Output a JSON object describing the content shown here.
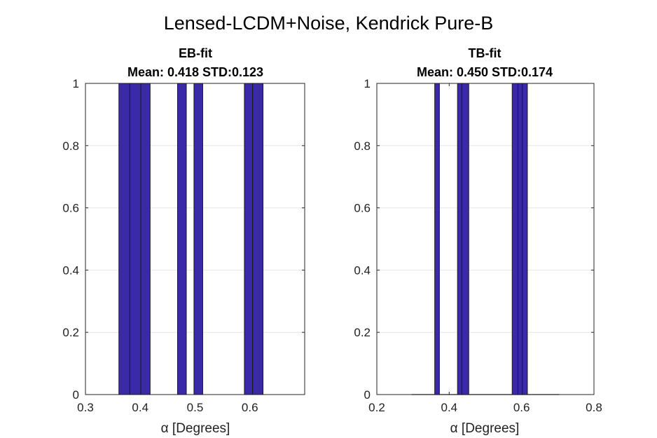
{
  "suptitle": "Lensed-LCDM+Noise, Kendrick Pure-B",
  "chart_data": [
    {
      "type": "bar",
      "title_line1": "EB-fit",
      "title_line2": "Mean: 0.418 STD:0.123",
      "xlabel": "α [Degrees]",
      "ylabel": "",
      "xlim": [
        0.3,
        0.7
      ],
      "ylim": [
        0,
        1
      ],
      "grid": "y",
      "xticks": [
        "0.3",
        "0.4",
        "0.5",
        "0.6"
      ],
      "yticks": [
        "0",
        "0.2",
        "0.4",
        "0.6",
        "0.8",
        "1"
      ],
      "bars": [
        {
          "x_start": 0.361,
          "x_end": 0.381,
          "value": 1
        },
        {
          "x_start": 0.381,
          "x_end": 0.401,
          "value": 1
        },
        {
          "x_start": 0.401,
          "x_end": 0.418,
          "value": 1
        },
        {
          "x_start": 0.468,
          "x_end": 0.484,
          "value": 1
        },
        {
          "x_start": 0.498,
          "x_end": 0.514,
          "value": 1
        },
        {
          "x_start": 0.59,
          "x_end": 0.605,
          "value": 1
        },
        {
          "x_start": 0.605,
          "x_end": 0.624,
          "value": 1
        }
      ],
      "baseline": []
    },
    {
      "type": "bar",
      "title_line1": "TB-fit",
      "title_line2": "Mean: 0.450 STD:0.174",
      "xlabel": "α [Degrees]",
      "ylabel": "",
      "xlim": [
        0.2,
        0.8
      ],
      "ylim": [
        0,
        1
      ],
      "grid": "y",
      "xticks": [
        "0.2",
        "0.4",
        "0.6",
        "0.8"
      ],
      "yticks": [
        "0",
        "0.2",
        "0.4",
        "0.6",
        "0.8",
        "1"
      ],
      "bars": [
        {
          "x_start": 0.36,
          "x_end": 0.373,
          "value": 1
        },
        {
          "x_start": 0.423,
          "x_end": 0.435,
          "value": 1
        },
        {
          "x_start": 0.435,
          "x_end": 0.454,
          "value": 1
        },
        {
          "x_start": 0.574,
          "x_end": 0.59,
          "value": 1
        },
        {
          "x_start": 0.59,
          "x_end": 0.602,
          "value": 1
        },
        {
          "x_start": 0.602,
          "x_end": 0.616,
          "value": 1
        }
      ],
      "baseline": [
        0.296,
        0.704
      ]
    }
  ]
}
